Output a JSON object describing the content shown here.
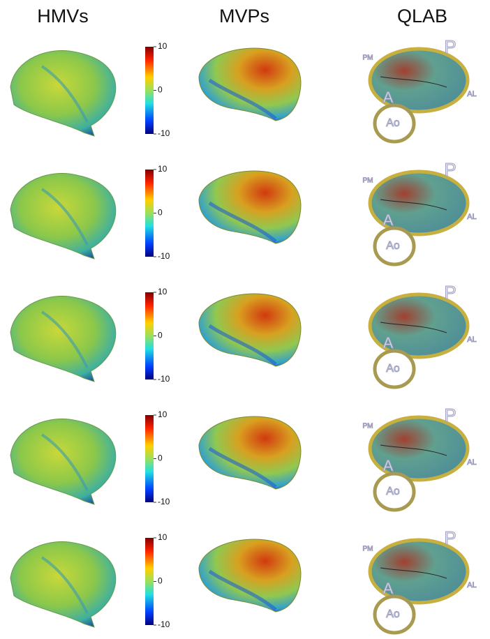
{
  "header": {
    "columns": [
      "HMVs",
      "MVPs",
      "QLAB"
    ]
  },
  "rows": [
    {
      "colorbar_ticks": [
        10,
        0,
        -10
      ],
      "qlab_labels": {
        "P": "P",
        "PM": "PM",
        "AL": "AL",
        "A": "A",
        "Ao": "Ao"
      }
    },
    {
      "colorbar_ticks": [
        10,
        0,
        -10
      ],
      "qlab_labels": {
        "P": "P",
        "PM": "PM",
        "AL": "AL",
        "A": "A",
        "Ao": "Ao"
      }
    },
    {
      "colorbar_ticks": [
        10,
        0,
        -10
      ],
      "qlab_labels": {
        "P": "P",
        "AL": "AL",
        "A": "A",
        "Ao": "Ao"
      }
    },
    {
      "colorbar_ticks": [
        10,
        0,
        -10
      ],
      "qlab_labels": {
        "P": "P",
        "PM": "PM",
        "AL": "AL",
        "A": "A",
        "Ao": "Ao"
      }
    },
    {
      "colorbar_ticks": [
        10,
        0,
        -10
      ],
      "qlab_labels": {
        "P": "P",
        "PM": "PM",
        "AL": "AL",
        "A": "A",
        "Ao": "Ao"
      }
    }
  ]
}
